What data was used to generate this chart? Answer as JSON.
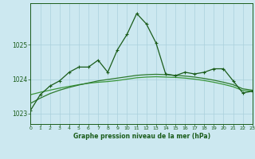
{
  "title": "Graphe pression niveau de la mer (hPa)",
  "background_color": "#cce8f0",
  "grid_color": "#aad0dc",
  "line_color_dark": "#1a5c1a",
  "line_color_mid": "#2d7a2d",
  "line_color_light": "#3a963a",
  "xlim": [
    0,
    23
  ],
  "ylim": [
    1022.7,
    1026.2
  ],
  "yticks": [
    1023,
    1024,
    1025
  ],
  "xticks": [
    0,
    1,
    2,
    3,
    4,
    5,
    6,
    7,
    8,
    9,
    10,
    11,
    12,
    13,
    14,
    15,
    16,
    17,
    18,
    19,
    20,
    21,
    22,
    23
  ],
  "series_main_x": [
    0,
    1,
    2,
    3,
    4,
    5,
    6,
    7,
    8,
    9,
    10,
    11,
    12,
    13,
    14,
    15,
    16,
    17,
    18,
    19,
    20,
    21,
    22,
    23
  ],
  "series_main_y": [
    1023.1,
    1023.55,
    1023.8,
    1023.95,
    1024.2,
    1024.35,
    1024.35,
    1024.55,
    1024.2,
    1024.85,
    1025.3,
    1025.9,
    1025.6,
    1025.05,
    1024.15,
    1024.1,
    1024.2,
    1024.15,
    1024.2,
    1024.3,
    1024.3,
    1023.95,
    1023.6,
    1023.65
  ],
  "series_s1_x": [
    0,
    1,
    2,
    3,
    4,
    5,
    6,
    7,
    8,
    9,
    10,
    11,
    12,
    13,
    14,
    15,
    16,
    17,
    18,
    19,
    20,
    21,
    22,
    23
  ],
  "series_s1_y": [
    1023.3,
    1023.45,
    1023.58,
    1023.68,
    1023.76,
    1023.83,
    1023.89,
    1023.95,
    1023.99,
    1024.03,
    1024.07,
    1024.11,
    1024.13,
    1024.14,
    1024.13,
    1024.11,
    1024.09,
    1024.06,
    1024.02,
    1023.97,
    1023.91,
    1023.84,
    1023.72,
    1023.68
  ],
  "series_s2_x": [
    0,
    1,
    2,
    3,
    4,
    5,
    6,
    7,
    8,
    9,
    10,
    11,
    12,
    13,
    14,
    15,
    16,
    17,
    18,
    19,
    20,
    21,
    22,
    23
  ],
  "series_s2_y": [
    1023.55,
    1023.62,
    1023.68,
    1023.74,
    1023.79,
    1023.84,
    1023.88,
    1023.91,
    1023.93,
    1023.96,
    1024.0,
    1024.04,
    1024.06,
    1024.07,
    1024.06,
    1024.05,
    1024.03,
    1024.0,
    1023.96,
    1023.91,
    1023.85,
    1023.78,
    1023.67,
    1023.65
  ]
}
